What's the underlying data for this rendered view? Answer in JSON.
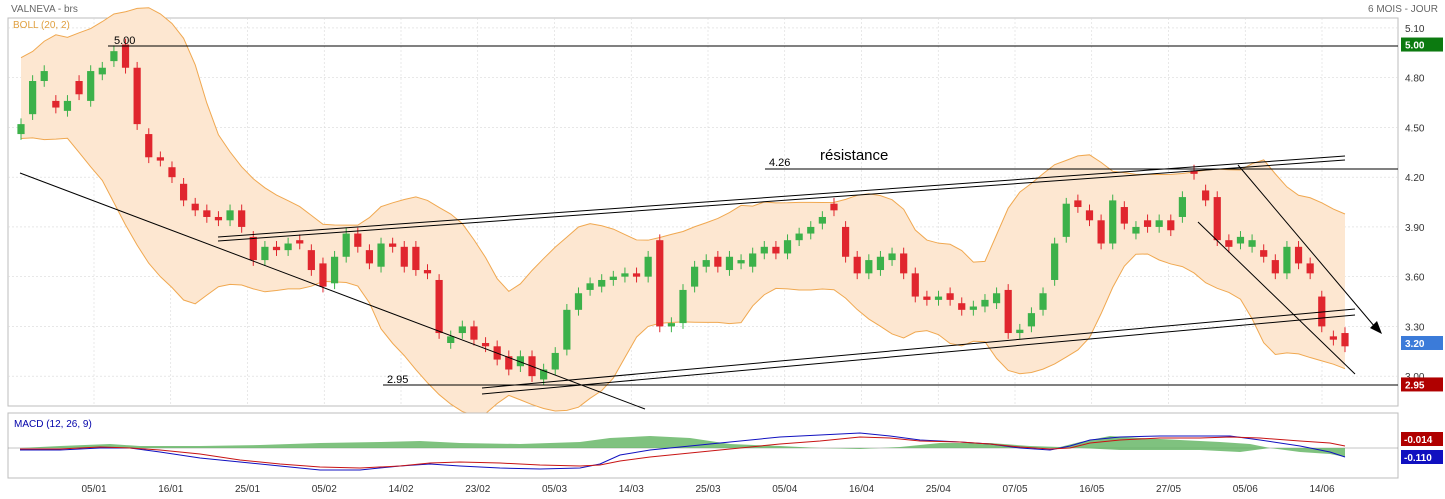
{
  "header": {
    "title": "VALNEVA - brs",
    "period": "6 MOIS - JOUR",
    "indicator": "BOLL (20, 2)"
  },
  "macd": {
    "label": "MACD (12, 26, 9)"
  },
  "annotations": {
    "resistance": "résistance",
    "level_500": "5.00",
    "level_426": "4.26",
    "level_295": "2.95"
  },
  "colors": {
    "up": "#3cb14a",
    "down": "#e0262e",
    "band": "#fde7d1",
    "band_line": "#f0a850",
    "grid": "#d9d9d9",
    "accent_green": "#0c7a10",
    "accent_red": "#b00000",
    "accent_blue": "#3b7bd9",
    "macd_hist": "#5fb35f",
    "macd_line": "#1010c0",
    "signal_line": "#c81414"
  },
  "chart_data": {
    "type": "candlestick",
    "ylim": [
      2.82,
      5.16
    ],
    "yticks": [
      "5.10",
      "4.80",
      "4.50",
      "4.20",
      "3.90",
      "3.60",
      "3.30",
      "3.00"
    ],
    "xticks": [
      "05/01",
      "16/01",
      "25/01",
      "05/02",
      "14/02",
      "23/02",
      "05/03",
      "14/03",
      "25/03",
      "05/04",
      "16/04",
      "25/04",
      "07/05",
      "16/05",
      "27/05",
      "05/06",
      "14/06"
    ],
    "price_labels": [
      {
        "text": "5.00",
        "value": 5.0,
        "color": "#0c7a10"
      },
      {
        "text": "3.20",
        "value": 3.2,
        "color": "#3b7bd9"
      },
      {
        "text": "2.95",
        "value": 2.95,
        "color": "#b00000"
      }
    ],
    "macd_labels": [
      {
        "text": "-0.014",
        "color": "#b00000"
      },
      {
        "text": "-0.110",
        "color": "#1010c0"
      }
    ],
    "horizontal_levels": [
      5.0,
      4.26,
      2.95
    ],
    "candles": [
      [
        4.46,
        4.52
      ],
      [
        4.58,
        4.78
      ],
      [
        4.78,
        4.84
      ],
      [
        4.66,
        4.62
      ],
      [
        4.6,
        4.66
      ],
      [
        4.78,
        4.7
      ],
      [
        4.66,
        4.84
      ],
      [
        4.82,
        4.86
      ],
      [
        4.9,
        4.96
      ],
      [
        5.0,
        4.86
      ],
      [
        4.86,
        4.52
      ],
      [
        4.46,
        4.32
      ],
      [
        4.32,
        4.3
      ],
      [
        4.26,
        4.2
      ],
      [
        4.16,
        4.06
      ],
      [
        4.04,
        4.0
      ],
      [
        4.0,
        3.96
      ],
      [
        3.96,
        3.94
      ],
      [
        3.94,
        4.0
      ],
      [
        4.0,
        3.9
      ],
      [
        3.84,
        3.7
      ],
      [
        3.7,
        3.78
      ],
      [
        3.78,
        3.76
      ],
      [
        3.76,
        3.8
      ],
      [
        3.82,
        3.8
      ],
      [
        3.76,
        3.64
      ],
      [
        3.68,
        3.54
      ],
      [
        3.56,
        3.72
      ],
      [
        3.72,
        3.86
      ],
      [
        3.86,
        3.78
      ],
      [
        3.76,
        3.68
      ],
      [
        3.66,
        3.8
      ],
      [
        3.8,
        3.78
      ],
      [
        3.78,
        3.66
      ],
      [
        3.78,
        3.64
      ],
      [
        3.64,
        3.62
      ],
      [
        3.58,
        3.26
      ],
      [
        3.2,
        3.24
      ],
      [
        3.26,
        3.3
      ],
      [
        3.3,
        3.22
      ],
      [
        3.2,
        3.18
      ],
      [
        3.18,
        3.1
      ],
      [
        3.12,
        3.04
      ],
      [
        3.06,
        3.12
      ],
      [
        3.12,
        3.0
      ],
      [
        2.98,
        3.04
      ],
      [
        3.04,
        3.14
      ],
      [
        3.16,
        3.4
      ],
      [
        3.4,
        3.5
      ],
      [
        3.52,
        3.56
      ],
      [
        3.54,
        3.58
      ],
      [
        3.58,
        3.6
      ],
      [
        3.6,
        3.62
      ],
      [
        3.62,
        3.6
      ],
      [
        3.6,
        3.72
      ],
      [
        3.82,
        3.3
      ],
      [
        3.3,
        3.32
      ],
      [
        3.32,
        3.52
      ],
      [
        3.54,
        3.66
      ],
      [
        3.66,
        3.7
      ],
      [
        3.72,
        3.66
      ],
      [
        3.64,
        3.72
      ],
      [
        3.68,
        3.7
      ],
      [
        3.66,
        3.74
      ],
      [
        3.74,
        3.78
      ],
      [
        3.78,
        3.74
      ],
      [
        3.74,
        3.82
      ],
      [
        3.82,
        3.86
      ],
      [
        3.86,
        3.9
      ],
      [
        3.92,
        3.96
      ],
      [
        4.04,
        4.0
      ],
      [
        3.9,
        3.72
      ],
      [
        3.72,
        3.62
      ],
      [
        3.62,
        3.7
      ],
      [
        3.64,
        3.72
      ],
      [
        3.7,
        3.74
      ],
      [
        3.74,
        3.62
      ],
      [
        3.62,
        3.48
      ],
      [
        3.48,
        3.46
      ],
      [
        3.46,
        3.48
      ],
      [
        3.5,
        3.46
      ],
      [
        3.44,
        3.4
      ],
      [
        3.4,
        3.42
      ],
      [
        3.42,
        3.46
      ],
      [
        3.44,
        3.5
      ],
      [
        3.52,
        3.26
      ],
      [
        3.26,
        3.28
      ],
      [
        3.3,
        3.38
      ],
      [
        3.4,
        3.5
      ],
      [
        3.58,
        3.8
      ],
      [
        3.84,
        4.04
      ],
      [
        4.06,
        4.02
      ],
      [
        4.0,
        3.94
      ],
      [
        3.94,
        3.8
      ],
      [
        3.8,
        4.06
      ],
      [
        4.02,
        3.92
      ],
      [
        3.86,
        3.9
      ],
      [
        3.94,
        3.9
      ],
      [
        3.9,
        3.94
      ],
      [
        3.94,
        3.88
      ],
      [
        3.96,
        4.08
      ],
      [
        4.24,
        4.22
      ],
      [
        4.12,
        4.06
      ],
      [
        4.08,
        3.82
      ],
      [
        3.82,
        3.78
      ],
      [
        3.8,
        3.84
      ],
      [
        3.78,
        3.82
      ],
      [
        3.76,
        3.72
      ],
      [
        3.7,
        3.62
      ],
      [
        3.62,
        3.78
      ],
      [
        3.78,
        3.68
      ],
      [
        3.68,
        3.62
      ],
      [
        3.48,
        3.3
      ],
      [
        3.24,
        3.22
      ],
      [
        3.26,
        3.18
      ]
    ]
  }
}
